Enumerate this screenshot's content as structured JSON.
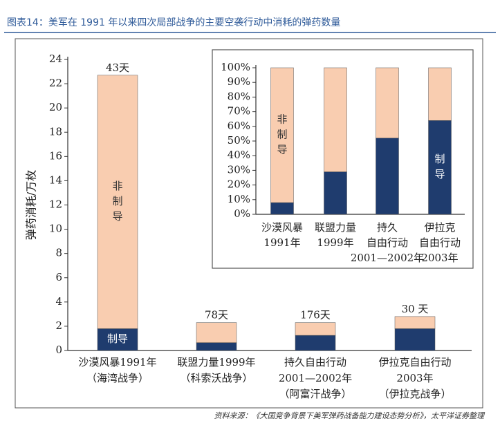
{
  "title": "图表14：美军在 1991 年以来四次局部战争的主要空袭行动中消耗的弹药数量",
  "source": "资料来源：《大国竞争背景下美军弹药战备能力建设态势分析》，太平洋证券整理",
  "chart_data": [
    {
      "type": "stacked_bar",
      "ylabel": "弹药消耗/万枚",
      "categories": [
        [
          "沙漠风暴1991年",
          "（海湾战争）"
        ],
        [
          "联盟力量1999年",
          "（科索沃战争）"
        ],
        [
          "持久自由行动",
          "2001—2002年",
          "（阿富汗战争）"
        ],
        [
          "伊拉克自由行动",
          "2003年",
          "（伊拉克战争）"
        ]
      ],
      "series": [
        {
          "name": [
            "制导"
          ],
          "color": "#1f3c6e",
          "values": [
            1.8,
            0.65,
            1.25,
            1.8
          ]
        },
        {
          "name": [
            "非",
            "制",
            "导"
          ],
          "color": "#f9cdb0",
          "values": [
            20.9,
            1.65,
            1.05,
            1.0
          ]
        }
      ],
      "value_labels": [
        "43天",
        "78天",
        "176天",
        "30 天"
      ],
      "ylim": [
        0,
        24
      ],
      "yticks": [
        0,
        2,
        4,
        6,
        8,
        10,
        12,
        14,
        16,
        18,
        20,
        22,
        24
      ]
    },
    {
      "type": "stacked_bar_pct",
      "categories": [
        [
          "沙漠风暴",
          "1991年"
        ],
        [
          "联盟力量",
          "1999年"
        ],
        [
          "持久",
          "自由行动",
          "2001—2002年"
        ],
        [
          "伊拉克",
          "自由行动",
          "2003年"
        ]
      ],
      "series": [
        {
          "name": [
            "制",
            "导"
          ],
          "color": "#1f3c6e",
          "values": [
            8,
            29,
            52,
            64
          ]
        },
        {
          "name": [
            "非",
            "制",
            "导"
          ],
          "color": "#f9cdb0",
          "values": [
            92,
            71,
            48,
            36
          ]
        }
      ],
      "ylim": [
        0,
        100
      ],
      "yticks": [
        {
          "value": 0,
          "label": "0%"
        },
        {
          "value": 10,
          "label": "10%"
        },
        {
          "value": 20,
          "label": "20%"
        },
        {
          "value": 30,
          "label": "30%"
        },
        {
          "value": 40,
          "label": "40%"
        },
        {
          "value": 50,
          "label": "50%"
        },
        {
          "value": 60,
          "label": "60%"
        },
        {
          "value": 70,
          "label": "70%"
        },
        {
          "value": 80,
          "label": "80%"
        },
        {
          "value": 90,
          "label": "90%"
        },
        {
          "value": 100,
          "label": "100%"
        }
      ]
    }
  ]
}
